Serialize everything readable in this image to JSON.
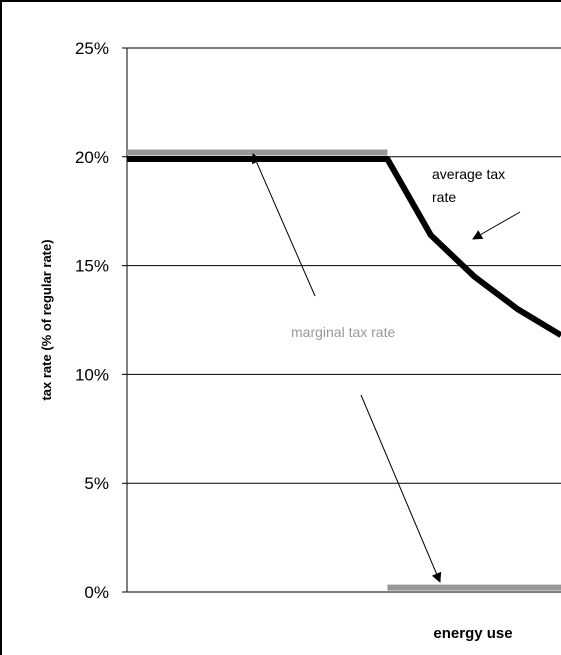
{
  "chart_data": {
    "type": "line",
    "title": "",
    "xlabel": "energy use",
    "ylabel": "tax rate (% of regular rate)",
    "ylim": [
      0,
      25
    ],
    "y_ticks": [
      0,
      5,
      10,
      15,
      20,
      25
    ],
    "y_tick_labels": [
      "0%",
      "5%",
      "10%",
      "15%",
      "20%",
      "25%"
    ],
    "x_tick_labels": [],
    "grid": true,
    "series": [
      {
        "color": "#000000",
        "x": [
          0,
          0.6,
          0.7,
          0.8,
          0.9,
          1.0
        ],
        "y": [
          19.9,
          19.9,
          16.4,
          14.5,
          13.0,
          11.8
        ]
      },
      {
        "color": "#999999",
        "x": [
          0,
          0.6,
          0.6,
          1.0
        ],
        "y": [
          20.2,
          20.2,
          0.2,
          0.2
        ]
      }
    ],
    "annotations": [
      {
        "text": "average tax rate",
        "lines": [
          "average tax",
          "rate"
        ],
        "color": "#000000"
      },
      {
        "text": "marginal tax rate",
        "color": "#999999"
      }
    ]
  }
}
